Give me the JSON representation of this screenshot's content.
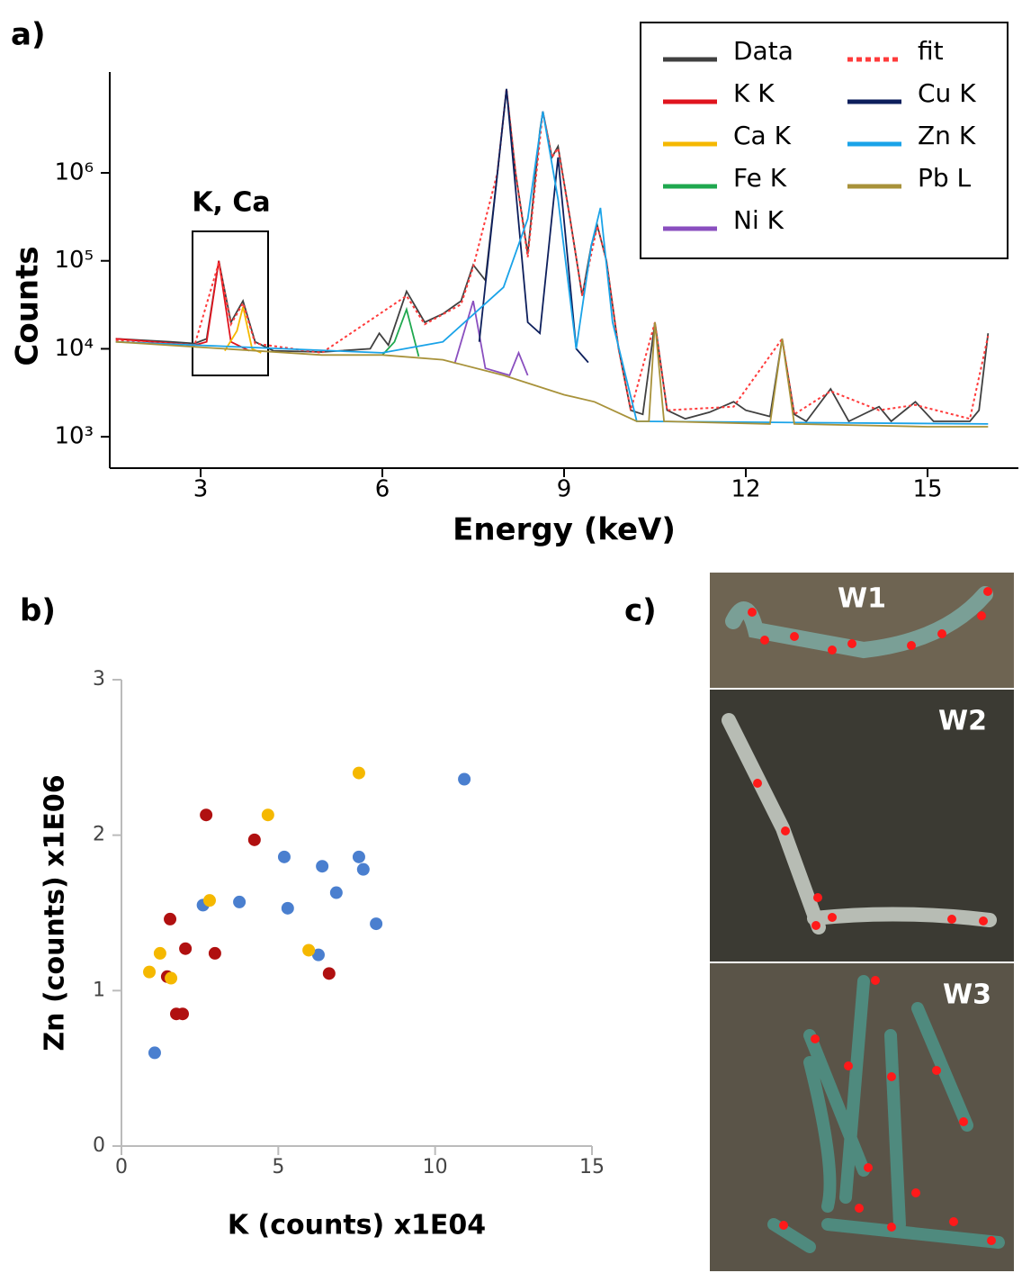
{
  "panel_labels": [
    "a)",
    "b)",
    "c)"
  ],
  "photos": {
    "labels": [
      "W1",
      "W2",
      "W3"
    ]
  },
  "chart_data": [
    {
      "type": "line",
      "y_scale": "log",
      "legend": "upper right",
      "xlabel": "Energy (keV)",
      "ylabel": "Counts",
      "annotation": "K, Ca",
      "xlim": [
        1.5,
        16.5
      ],
      "ylim": [
        440,
        14000000
      ],
      "xticks": [
        3,
        6,
        9,
        12,
        15
      ],
      "yticks": [
        {
          "value": 1000,
          "label": "10³"
        },
        {
          "value": 10000,
          "label": "10⁴"
        },
        {
          "value": 100000,
          "label": "10⁵"
        },
        {
          "value": 1000000,
          "label": "10⁶"
        }
      ],
      "series": [
        {
          "name": "Data",
          "color": "#404040",
          "linestyle": "solid",
          "x": [
            1.6,
            2.5,
            2.9,
            3.1,
            3.3,
            3.5,
            3.7,
            3.9,
            4.2,
            5,
            5.8,
            5.95,
            6.1,
            6.4,
            6.7,
            7.0,
            7.3,
            7.5,
            7.7,
            7.9,
            8.05,
            8.2,
            8.4,
            8.6,
            8.65,
            8.8,
            8.9,
            9.1,
            9.3,
            9.45,
            9.55,
            9.7,
            9.9,
            10.1,
            10.3,
            10.5,
            10.7,
            11.0,
            11.4,
            11.8,
            12.0,
            12.4,
            12.6,
            12.8,
            13.0,
            13.4,
            13.7,
            14.2,
            14.4,
            14.8,
            15.1,
            15.7,
            15.85,
            16.0
          ],
          "values": [
            13000,
            12000,
            11500,
            13000,
            100000,
            20000,
            35000,
            12000,
            9500,
            9200,
            10000,
            15000,
            11000,
            45000,
            20000,
            25000,
            35000,
            90000,
            60000,
            1000000,
            9000000,
            1000000,
            120000,
            3000000,
            5000000,
            1500000,
            2000000,
            300000,
            40000,
            150000,
            250000,
            100000,
            10000,
            2000,
            1800,
            20000,
            2000,
            1600,
            1900,
            2500,
            2000,
            1700,
            13000,
            1800,
            1500,
            3500,
            1500,
            2200,
            1500,
            2500,
            1500,
            1500,
            2000,
            15000
          ]
        },
        {
          "name": "K K",
          "color": "#e0141e",
          "linestyle": "solid",
          "x": [
            1.6,
            2.9,
            3.1,
            3.3,
            3.5,
            3.8
          ],
          "values": [
            13000,
            11000,
            12000,
            100000,
            12000,
            9500
          ]
        },
        {
          "name": "Ca K",
          "color": "#f5b800",
          "linestyle": "solid",
          "x": [
            3.4,
            3.6,
            3.7,
            3.85,
            4.0
          ],
          "values": [
            9500,
            16000,
            30000,
            10000,
            9000
          ]
        },
        {
          "name": "Fe K",
          "color": "#1fa84f",
          "linestyle": "solid",
          "x": [
            6.0,
            6.2,
            6.4,
            6.6
          ],
          "values": [
            8500,
            12000,
            28000,
            8200
          ]
        },
        {
          "name": "Ni K",
          "color": "#8a4fbf",
          "linestyle": "solid",
          "x": [
            7.2,
            7.5,
            7.7,
            8.1,
            8.25,
            8.4
          ],
          "values": [
            7000,
            35000,
            6000,
            5000,
            9000,
            5000
          ]
        },
        {
          "name": "fit",
          "color": "#ff3b3b",
          "linestyle": "dotted",
          "x": [
            1.6,
            2.9,
            3.3,
            3.5,
            3.7,
            3.9,
            5,
            6.4,
            6.7,
            7.3,
            7.5,
            7.9,
            8.05,
            8.2,
            8.4,
            8.65,
            8.8,
            8.9,
            9.1,
            9.3,
            9.55,
            9.7,
            9.9,
            10.1,
            10.5,
            10.7,
            11.8,
            12.6,
            12.8,
            13.4,
            14.2,
            14.8,
            15.7,
            16.0
          ],
          "values": [
            12500,
            11000,
            95000,
            19000,
            33000,
            11500,
            9000,
            40000,
            19000,
            32000,
            85000,
            1000000,
            9000000,
            1000000,
            110000,
            5000000,
            1500000,
            1900000,
            300000,
            40000,
            250000,
            100000,
            10000,
            2000,
            20000,
            2000,
            2200,
            13000,
            1800,
            3300,
            2000,
            2300,
            1600,
            14000
          ]
        },
        {
          "name": "Cu K",
          "color": "#0d1f5c",
          "linestyle": "solid",
          "x": [
            7.6,
            8.05,
            8.4,
            8.6,
            8.9,
            9.2,
            9.4
          ],
          "values": [
            12000,
            9000000,
            20000,
            15000,
            1500000,
            10000,
            7000
          ]
        },
        {
          "name": "Zn K",
          "color": "#1aa3e8",
          "linestyle": "solid",
          "x": [
            1.6,
            6,
            7,
            8,
            8.4,
            8.65,
            8.9,
            9.2,
            9.45,
            9.6,
            9.8,
            10.2,
            16
          ],
          "values": [
            12000,
            9000,
            12000,
            50000,
            300000,
            5000000,
            500000,
            10000,
            150000,
            400000,
            20000,
            1500,
            1400
          ]
        },
        {
          "name": "Pb L",
          "color": "#a8923a",
          "linestyle": "solid",
          "x": [
            1.6,
            5,
            6,
            7,
            8,
            9,
            9.5,
            10.2,
            10.4,
            10.5,
            10.65,
            12.4,
            12.6,
            12.8,
            15,
            16
          ],
          "values": [
            12000,
            8500,
            8500,
            7500,
            5000,
            3000,
            2500,
            1500,
            1500,
            20000,
            1500,
            1400,
            13000,
            1400,
            1300,
            1300
          ]
        }
      ]
    },
    {
      "type": "scatter",
      "xlabel": "K (counts) x1E04",
      "ylabel": "Zn (counts) x1E06",
      "xlim": [
        0,
        15
      ],
      "ylim": [
        0,
        3
      ],
      "xticks": [
        0,
        5,
        10,
        15
      ],
      "yticks": [
        0,
        1,
        2,
        3
      ],
      "series": [
        {
          "color": "#4a7fcf",
          "x": [
            1.06,
            2.6,
            3.76,
            5.19,
            5.3,
            6.28,
            6.4,
            6.85,
            7.57,
            7.71,
            8.12,
            10.93
          ],
          "values": [
            0.6,
            1.55,
            1.57,
            1.86,
            1.53,
            1.23,
            1.8,
            1.63,
            1.86,
            1.78,
            1.43,
            2.36
          ]
        },
        {
          "color": "#b01010",
          "x": [
            2.7,
            4.24,
            1.55,
            2.04,
            2.98,
            1.46,
            1.75,
            1.95,
            6.62
          ],
          "values": [
            2.13,
            1.97,
            1.46,
            1.27,
            1.24,
            1.09,
            0.85,
            0.85,
            1.11
          ]
        },
        {
          "color": "#f5b800",
          "x": [
            7.57,
            4.67,
            2.81,
            1.23,
            0.89,
            1.58,
            5.97
          ],
          "values": [
            2.4,
            2.13,
            1.58,
            1.24,
            1.12,
            1.08,
            1.26
          ]
        }
      ]
    }
  ]
}
